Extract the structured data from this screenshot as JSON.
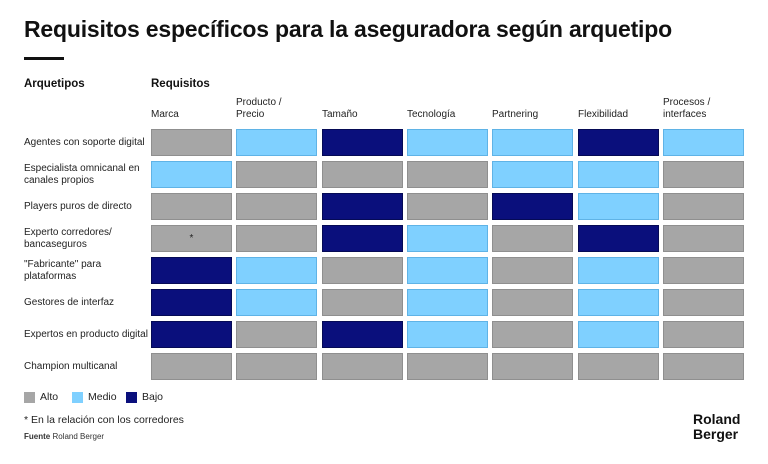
{
  "title": "Requisitos específicos para la aseguradora según arquetipo",
  "headers": {
    "rows": "Arquetipos",
    "columns": "Requisitos"
  },
  "colors": {
    "Alto": "#a6a6a6",
    "Medio": "#7fd0ff",
    "Bajo": "#0a0f7c"
  },
  "chart_data": {
    "type": "table",
    "columns": [
      "Marca",
      "Producto / Precio",
      "Tamaño",
      "Tecnología",
      "Partnering",
      "Flexibilidad",
      "Procesos / interfaces"
    ],
    "rows": [
      "Agentes con soporte digital",
      "Especialista omnicanal en canales propios",
      "Players puros de directo",
      "Experto corredores/ bancaseguros",
      "\"Fabricante\" para plataformas",
      "Gestores de interfaz",
      "Expertos en producto digital",
      "Champion multicanal"
    ],
    "values": [
      [
        "Alto",
        "Medio",
        "Bajo",
        "Medio",
        "Medio",
        "Bajo",
        "Medio"
      ],
      [
        "Medio",
        "Alto",
        "Alto",
        "Alto",
        "Medio",
        "Medio",
        "Alto"
      ],
      [
        "Alto",
        "Alto",
        "Bajo",
        "Alto",
        "Bajo",
        "Medio",
        "Alto"
      ],
      [
        "Alto",
        "Alto",
        "Bajo",
        "Medio",
        "Alto",
        "Bajo",
        "Alto"
      ],
      [
        "Bajo",
        "Medio",
        "Alto",
        "Medio",
        "Alto",
        "Medio",
        "Alto"
      ],
      [
        "Bajo",
        "Medio",
        "Alto",
        "Medio",
        "Alto",
        "Medio",
        "Alto"
      ],
      [
        "Bajo",
        "Alto",
        "Bajo",
        "Medio",
        "Alto",
        "Medio",
        "Alto"
      ],
      [
        "Alto",
        "Alto",
        "Alto",
        "Alto",
        "Alto",
        "Alto",
        "Alto"
      ]
    ],
    "annotations": [
      {
        "row": 3,
        "col": 0,
        "text": "*"
      }
    ],
    "legend": [
      "Alto",
      "Medio",
      "Bajo"
    ],
    "legend_placement": "bottom-left"
  },
  "footnote": "* En la relación con los corredores",
  "source": {
    "label": "Fuente",
    "text": "Roland Berger"
  },
  "logo": {
    "line1": "Roland",
    "line2": "Berger"
  }
}
